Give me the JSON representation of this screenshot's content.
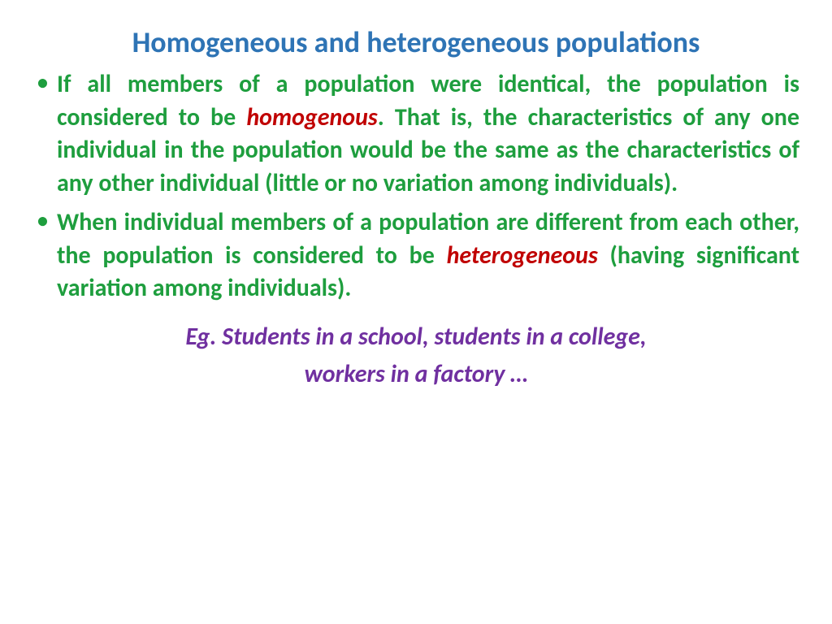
{
  "colors": {
    "title": "#2e74b5",
    "body": "#1e9e3e",
    "bullet": "#1e9e3e",
    "keyword": "#c00000",
    "example": "#7030a0",
    "background": "#ffffff"
  },
  "fonts": {
    "title_size": 36,
    "body_size": 30,
    "example_size": 30
  },
  "title": "Homogeneous and heterogeneous populations",
  "bullets": [
    {
      "pre": "If all members of a population were identical, the population is considered to be ",
      "keyword": "homogenous",
      "post": ". That is, the characteristics of any one individual in the population would be the same as the characteristics of any other individual (little or no variation among individuals)."
    },
    {
      "pre": "When individual members of a population are different from each other, the population is considered to be ",
      "keyword": "heterogeneous",
      "post": " (having significant variation among individuals)."
    }
  ],
  "example": {
    "line1": "Eg. Students in a school, students in a college,",
    "line2": "workers in a factory …"
  }
}
